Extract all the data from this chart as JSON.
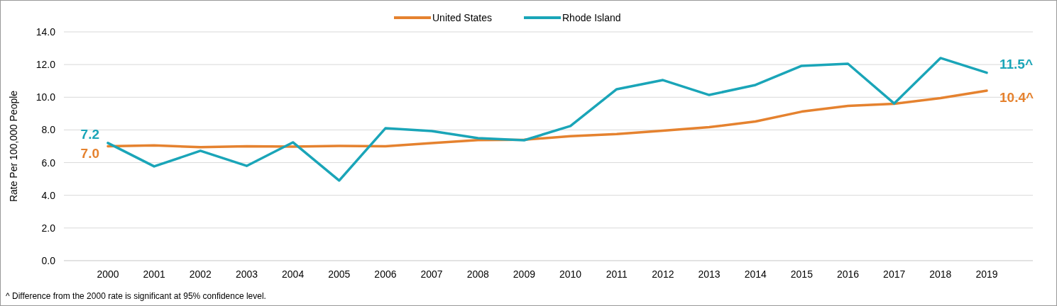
{
  "chart_data": {
    "type": "line",
    "ylabel": "Rate Per 100,000 People",
    "categories": [
      "2000",
      "2001",
      "2002",
      "2003",
      "2004",
      "2005",
      "2006",
      "2007",
      "2008",
      "2009",
      "2010",
      "2011",
      "2012",
      "2013",
      "2014",
      "2015",
      "2016",
      "2017",
      "2018",
      "2019"
    ],
    "series": [
      {
        "name": "United States",
        "color": "#e5822f",
        "values": [
          7.0,
          7.05,
          6.95,
          7.0,
          6.98,
          7.02,
          7.0,
          7.2,
          7.38,
          7.4,
          7.62,
          7.75,
          7.95,
          8.17,
          8.52,
          9.12,
          9.47,
          9.6,
          9.95,
          10.4
        ],
        "value_labels": [
          "7.0",
          null,
          null,
          null,
          null,
          null,
          null,
          null,
          null,
          null,
          null,
          null,
          null,
          null,
          null,
          null,
          null,
          null,
          null,
          "10.4^"
        ]
      },
      {
        "name": "Rhode Island",
        "color": "#1aa5b8",
        "values": [
          7.2,
          5.77,
          6.72,
          5.8,
          7.24,
          4.9,
          8.1,
          7.93,
          7.5,
          7.37,
          8.24,
          10.49,
          11.05,
          10.14,
          10.75,
          11.92,
          12.05,
          9.62,
          12.4,
          11.5
        ],
        "value_labels": [
          "7.2",
          null,
          null,
          null,
          null,
          null,
          null,
          null,
          null,
          null,
          null,
          null,
          null,
          null,
          null,
          null,
          null,
          null,
          null,
          "11.5^"
        ]
      }
    ],
    "ylim": [
      0,
      14
    ],
    "yticks": [
      {
        "value": 0,
        "label": "0.0"
      },
      {
        "value": 2,
        "label": "2.0"
      },
      {
        "value": 4,
        "label": "4.0"
      },
      {
        "value": 6,
        "label": "6.0"
      },
      {
        "value": 8,
        "label": "8.0"
      },
      {
        "value": 10,
        "label": "10.0"
      },
      {
        "value": 12,
        "label": "12.0"
      },
      {
        "value": 14,
        "label": "14.0"
      }
    ],
    "grid": "y",
    "legend": "top",
    "marker": "none",
    "line_style": "solid",
    "annotations": [
      "^ Difference from the 2000 rate is significant at 95% confidence level."
    ]
  }
}
